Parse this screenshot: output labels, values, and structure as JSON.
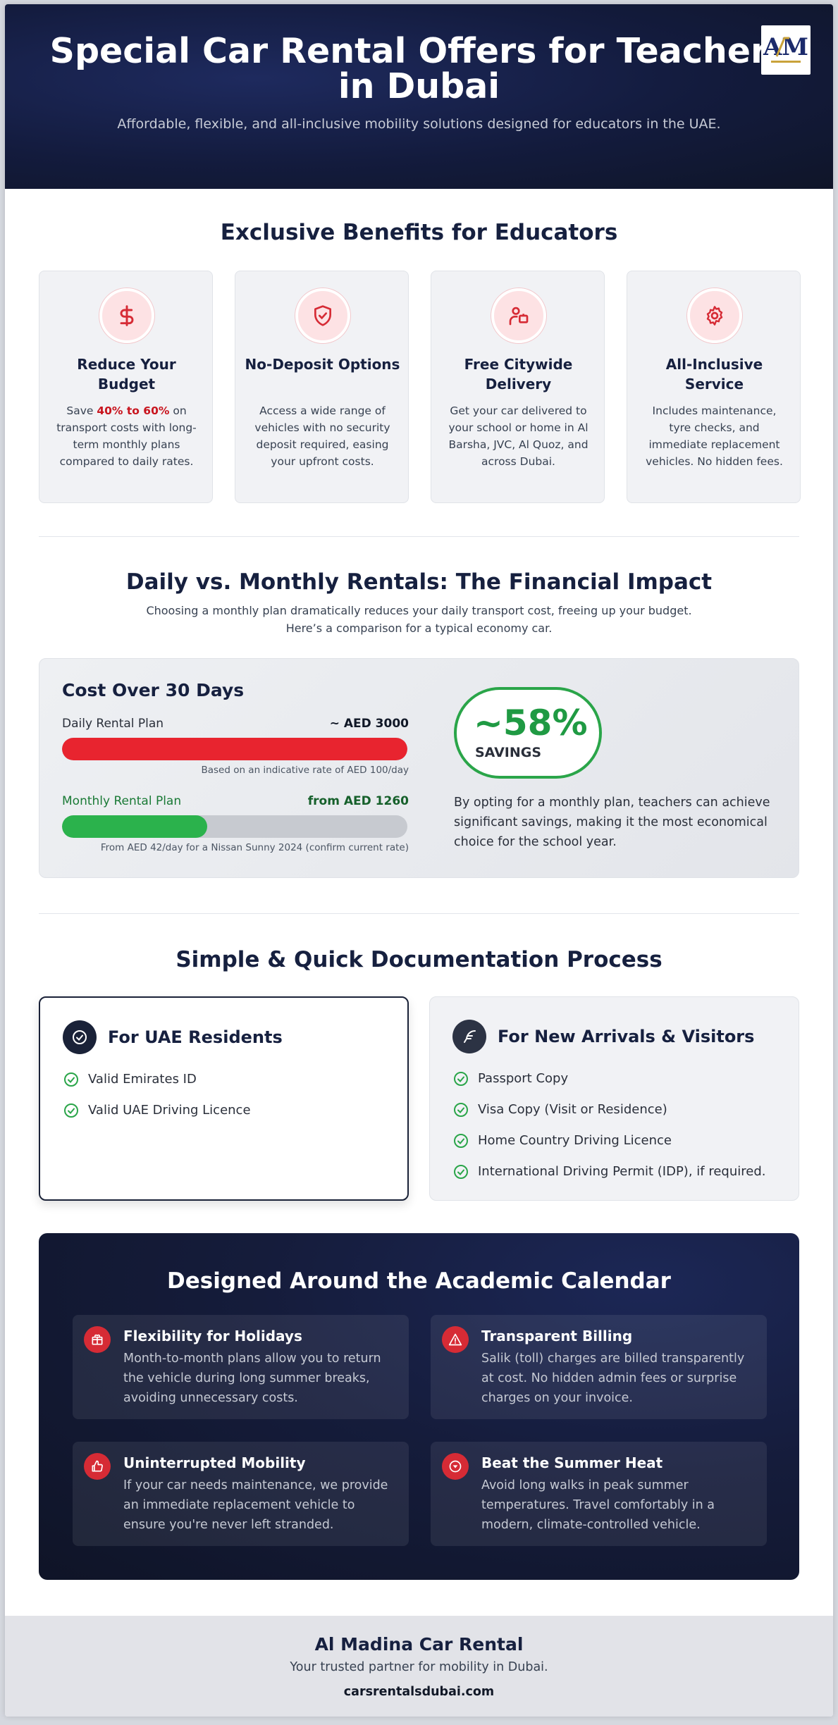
{
  "hero": {
    "title": "Special Car Rental Offers for Teachers in Dubai",
    "subtitle": "Affordable, flexible, and all-inclusive mobility solutions designed for educators in the UAE.",
    "logo_text": "AM"
  },
  "benefits": {
    "title": "Exclusive Benefits for Educators",
    "items": [
      {
        "icon": "dollar-icon",
        "title": "Reduce Your Budget",
        "text_before": "Save ",
        "highlight": "40% to 60%",
        "text_after": " on transport costs with long-term monthly plans compared to daily rates."
      },
      {
        "icon": "shield-check-icon",
        "title": "No-Deposit Options",
        "text": "Access a wide range of vehicles with no security deposit required, easing your upfront costs."
      },
      {
        "icon": "delivery-person-icon",
        "title": "Free Citywide Delivery",
        "text": "Get your car delivered to your school or home in Al Barsha, JVC, Al Quoz, and across Dubai."
      },
      {
        "icon": "gear-icon",
        "title": "All-Inclusive Service",
        "text": "Includes maintenance, tyre checks, and immediate replacement vehicles. No hidden fees."
      }
    ]
  },
  "comparison": {
    "title": "Daily vs. Monthly Rentals: The Financial Impact",
    "subtitle": "Choosing a monthly plan dramatically reduces your daily transport cost, freeing up your budget. Here’s a comparison for a typical economy car.",
    "box_title": "Cost Over 30 Days",
    "daily": {
      "label": "Daily Rental Plan",
      "value": "~ AED 3000",
      "note": "Based on an indicative rate of AED 100/day",
      "fill_fraction": 1.0
    },
    "monthly": {
      "label": "Monthly Rental Plan",
      "value": "from AED 1260",
      "note": "From AED 42/day for a Nissan Sunny 2024 (confirm current rate)",
      "fill_fraction": 0.42
    },
    "savings_value": "~58%",
    "savings_label": "SAVINGS",
    "description": "By opting for a monthly plan, teachers can achieve significant savings, making it the most economical choice for the school year.",
    "colors": {
      "daily": "#e8242f",
      "monthly": "#2bb24c"
    }
  },
  "docs": {
    "title": "Simple & Quick Documentation Process",
    "residents": {
      "title": "For UAE Residents",
      "items": [
        "Valid Emirates ID",
        "Valid UAE Driving Licence"
      ]
    },
    "visitors": {
      "title": "For New Arrivals & Visitors",
      "items": [
        "Passport Copy",
        "Visa Copy (Visit or Residence)",
        "Home Country Driving Licence",
        "International Driving Permit (IDP), if required."
      ]
    }
  },
  "academic": {
    "title": "Designed Around the Academic Calendar",
    "items": [
      {
        "icon": "gift-box-icon",
        "title": "Flexibility for Holidays",
        "text": "Month-to-month plans allow you to return the vehicle during long summer breaks, avoiding unnecessary costs."
      },
      {
        "icon": "warning-triangle-icon",
        "title": "Transparent Billing",
        "text": "Salik (toll) charges are billed transparently at cost. No hidden admin fees or surprise charges on your invoice."
      },
      {
        "icon": "thumbs-up-icon",
        "title": "Uninterrupted Mobility",
        "text": "If your car needs maintenance, we provide an immediate replacement vehicle to ensure you're never left stranded."
      },
      {
        "icon": "temperature-icon",
        "title": "Beat the Summer Heat",
        "text": "Avoid long walks in peak summer temperatures. Travel comfortably in a modern, climate-controlled vehicle."
      }
    ]
  },
  "footer": {
    "name": "Al Madina Car Rental",
    "tagline": "Your trusted partner for mobility in Dubai.",
    "site": "carsrentalsdubai.com"
  }
}
